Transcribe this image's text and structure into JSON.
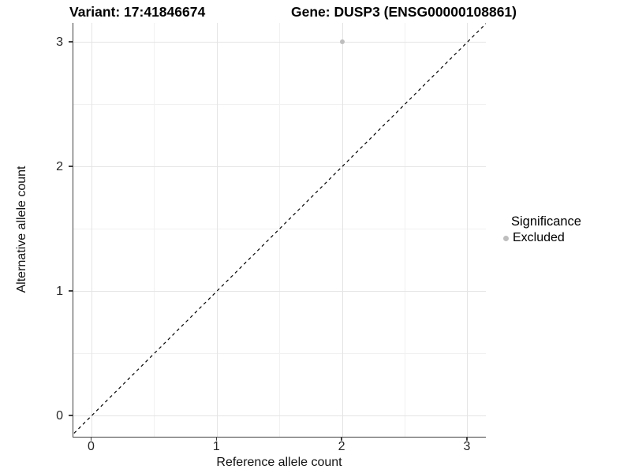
{
  "titles": {
    "variant": "Variant: 17:41846674",
    "gene": "Gene: DUSP3 (ENSG00000108861)"
  },
  "chart_data": {
    "type": "scatter",
    "xlabel": "Reference allele count",
    "ylabel": "Alternative allele count",
    "xlim": [
      -0.15,
      3.15
    ],
    "ylim": [
      -0.17,
      3.15
    ],
    "x_ticks": [
      0,
      1,
      2,
      3
    ],
    "y_ticks": [
      0,
      1,
      2,
      3
    ],
    "minor_breaks": [
      0.5,
      1.5,
      2.5
    ],
    "grid": true,
    "series": [
      {
        "name": "Excluded",
        "color": "#bebebe",
        "points": [
          {
            "x": 2,
            "y": 3
          }
        ]
      }
    ],
    "reference_line": {
      "type": "identity",
      "equation": "y = x",
      "style": "dashed",
      "color": "#000000"
    },
    "legend": {
      "title": "Significance",
      "position": "right",
      "items": [
        {
          "label": "Excluded",
          "color": "#bebebe"
        }
      ]
    }
  },
  "colors": {
    "background": "#ffffff",
    "axis_line": "#404040",
    "grid_major": "#e4e4e4",
    "grid_minor": "#f1f1f1",
    "tick_text": "#262626",
    "point_excluded": "#bebebe"
  }
}
